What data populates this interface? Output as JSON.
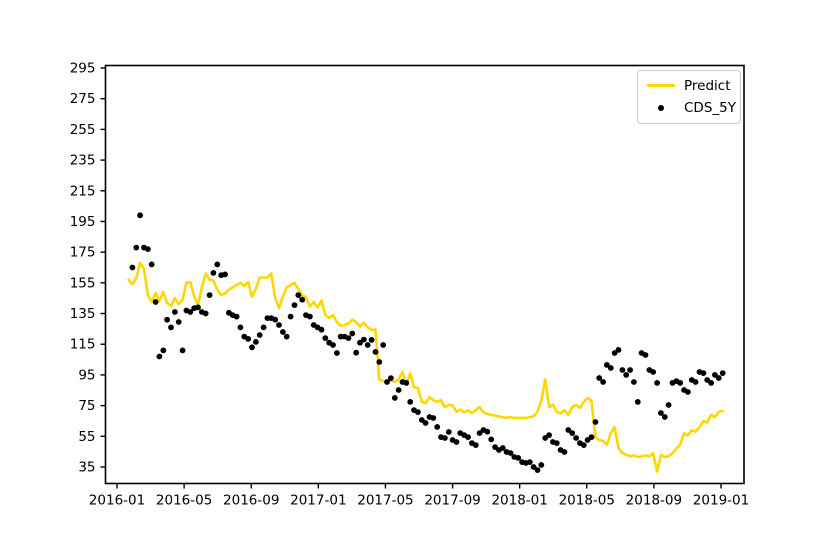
{
  "chart_data": {
    "type": "line+scatter",
    "title": "",
    "xlabel": "",
    "ylabel": "",
    "background": "#ffffff",
    "axis_color": "#000000",
    "grid": false,
    "legend": {
      "position": "upper right"
    },
    "x_ticks": [
      "2016-01",
      "2016-05",
      "2016-09",
      "2017-01",
      "2017-05",
      "2017-09",
      "2018-01",
      "2018-05",
      "2018-09",
      "2019-01"
    ],
    "y_ticks": [
      35,
      55,
      75,
      95,
      115,
      135,
      155,
      175,
      195,
      215,
      235,
      255,
      275,
      295
    ],
    "x_range": [
      "2016-01-01",
      "2019-01-01"
    ],
    "x_axis": {
      "start_date": "2016-01-22",
      "interval_days": 7,
      "points": 155
    },
    "series": [
      {
        "name": "Predict",
        "type": "line",
        "color": "#FFD700",
        "values": [
          157,
          154,
          158,
          168,
          164,
          147,
          142.5,
          148.5,
          143,
          149,
          142,
          140,
          145,
          141,
          144,
          155,
          155.5,
          146,
          140.5,
          152,
          161,
          157,
          156.5,
          150.5,
          147,
          148,
          150.5,
          152,
          153.5,
          155,
          153,
          155.5,
          146,
          151,
          158.5,
          158.5,
          158.5,
          161,
          145,
          138.5,
          146,
          152,
          153.5,
          155,
          151,
          147,
          145.5,
          139.5,
          142.5,
          139,
          143.5,
          134,
          132,
          134,
          129.5,
          127,
          127.5,
          128.5,
          131,
          129.5,
          126.5,
          129,
          126,
          124.5,
          124.5,
          92,
          91,
          90.5,
          91.5,
          90.5,
          92,
          97,
          88.5,
          96,
          87,
          86.5,
          77.5,
          76.5,
          80.5,
          78.5,
          77.5,
          78.5,
          74,
          75.5,
          75,
          71,
          72.5,
          70.5,
          72,
          70,
          72,
          74,
          70.5,
          69.5,
          69,
          68.5,
          68,
          67.5,
          67,
          67.5,
          67,
          67,
          66.9,
          67,
          67.5,
          68,
          71,
          78,
          92,
          74,
          75.5,
          71,
          70,
          72,
          69,
          74,
          75.5,
          73.5,
          77.5,
          80,
          78,
          54.5,
          52.5,
          52,
          49.5,
          57,
          61,
          47.5,
          44,
          43,
          42,
          42.5,
          41.5,
          42,
          42.5,
          42,
          44,
          32,
          42.8,
          41.5,
          42,
          44,
          47,
          49.5,
          57,
          55.5,
          59,
          58,
          61,
          65,
          64,
          69,
          67.5,
          71,
          71.5
        ]
      },
      {
        "name": "CDS_5Y",
        "type": "scatter",
        "color": "#000000",
        "values": [
          null,
          165,
          178,
          199,
          178,
          177,
          167,
          142.5,
          107,
          111,
          131,
          126,
          136,
          129.5,
          111,
          137,
          136,
          138.5,
          139,
          136,
          135,
          147,
          161.5,
          167,
          160,
          160.5,
          135.5,
          134,
          133,
          126,
          120,
          118.5,
          113,
          116.5,
          121,
          126,
          132,
          132,
          131,
          127.5,
          123,
          120,
          133,
          140.5,
          147,
          144,
          134,
          133,
          127.5,
          126,
          124.5,
          119,
          116,
          114.5,
          109.3,
          120,
          120,
          119,
          122,
          109.5,
          116,
          118,
          114.5,
          117.8,
          110,
          103.4,
          114.5,
          90.4,
          92.9,
          80,
          85.2,
          90.4,
          89.8,
          77.4,
          72.1,
          70.8,
          65.6,
          63.7,
          67.6,
          66.9,
          61.1,
          54.5,
          53.9,
          57.8,
          52.6,
          51.3,
          57.1,
          55.8,
          54.5,
          50.6,
          49.3,
          57.1,
          59.1,
          58,
          53,
          48,
          46.1,
          47.4,
          44.8,
          44.1,
          41.5,
          40.9,
          38.2,
          37.6,
          38.2,
          35,
          33,
          36.3,
          53.9,
          55.8,
          51.3,
          50.6,
          46.1,
          44.8,
          59.1,
          57.1,
          53.9,
          50.6,
          49.3,
          52.6,
          54.5,
          64.3,
          93,
          90.4,
          101.5,
          99.5,
          109.3,
          111.3,
          98.2,
          95,
          98.2,
          90.4,
          77.4,
          109.3,
          108,
          98.2,
          96.9,
          89.8,
          70.2,
          67.6,
          75.4,
          89.8,
          91,
          89.8,
          85.2,
          83.9,
          91.7,
          90.4,
          96.9,
          96.2,
          91.7,
          89.8,
          95,
          93,
          96.2
        ]
      }
    ]
  }
}
